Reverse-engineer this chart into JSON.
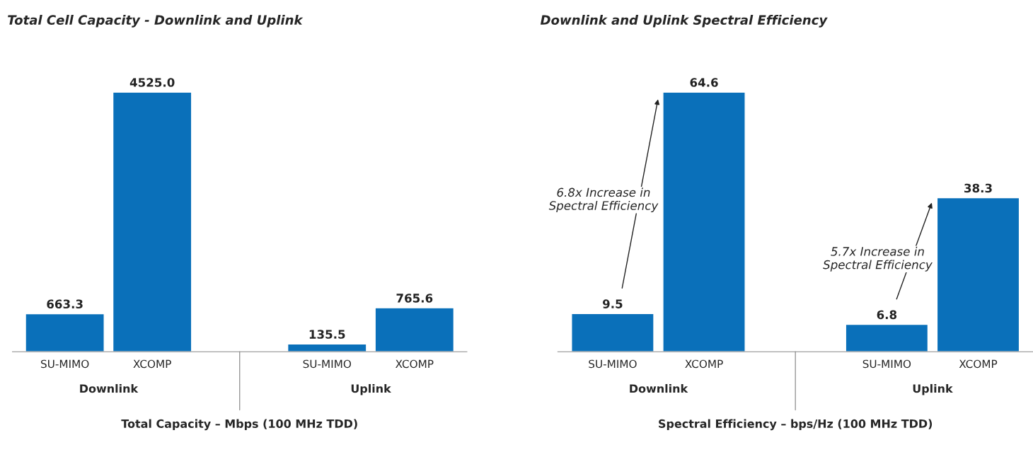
{
  "chart_data": [
    {
      "type": "bar",
      "title": "Total Cell Capacity - Downlink and Uplink",
      "xlabel": "Total Capacity – Mbps (100 MHz TDD)",
      "categories": [
        "SU-MIMO",
        "XCOMP",
        null,
        "SU-MIMO",
        "XCOMP"
      ],
      "values": [
        663.3,
        4525.0,
        null,
        135.5,
        765.6
      ],
      "value_labels": [
        "663.3",
        "4525.0",
        null,
        "135.5",
        "765.6"
      ],
      "color": "#0a70ba",
      "grid": false,
      "legend": false,
      "annotations": [
        "Downlink",
        "Uplink"
      ]
    },
    {
      "type": "bar",
      "title": "Downlink and Uplink Spectral Efficiency",
      "xlabel": "Spectral Efficiency – bps/Hz (100 MHz TDD)",
      "categories": [
        "SU-MIMO",
        "XCOMP",
        null,
        "SU-MIMO",
        "XCOMP"
      ],
      "values": [
        9.5,
        64.6,
        null,
        6.8,
        38.3
      ],
      "value_labels": [
        "9.5",
        "64.6",
        null,
        "6.8",
        "38.3"
      ],
      "color": "#0a70ba",
      "grid": false,
      "legend": false,
      "annotations": [
        "Downlink",
        "Uplink",
        "6.8x Increase in\nSpectral Efficiency",
        "5.7x Increase in\nSpectral Efficiency"
      ]
    }
  ]
}
